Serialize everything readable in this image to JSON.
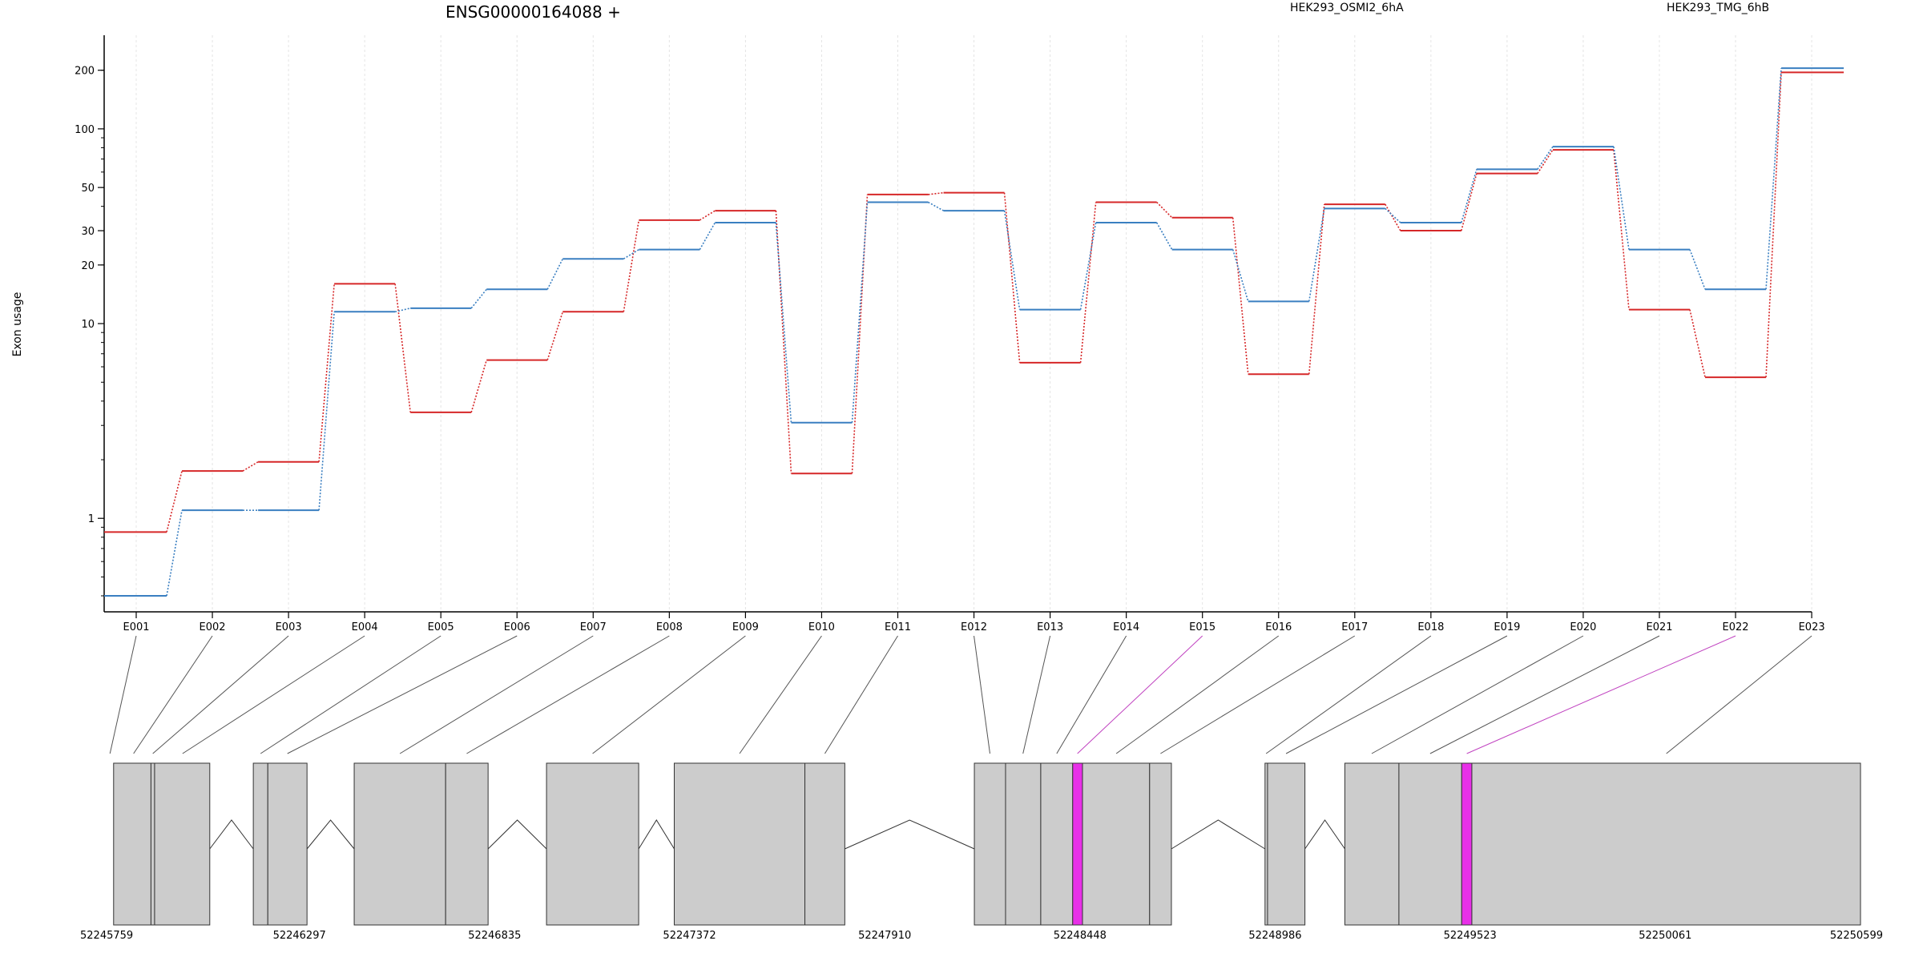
{
  "chart_data": {
    "type": "line",
    "title": "ENSG00000164088 +",
    "ylabel": "Exon usage",
    "y_scale": "log",
    "ylim": [
      0.4,
      260
    ],
    "y_ticks": [
      1,
      10,
      20,
      30,
      50,
      100,
      200
    ],
    "grid": "vertical dotted lines at each exon",
    "legend_placement": "top-right",
    "categories": [
      "E001",
      "E002",
      "E003",
      "E004",
      "E005",
      "E006",
      "E007",
      "E008",
      "E009",
      "E010",
      "E011",
      "E012",
      "E013",
      "E014",
      "E015",
      "E016",
      "E017",
      "E018",
      "E019",
      "E020",
      "E021",
      "E022",
      "E023"
    ],
    "series": [
      {
        "name": "HEK293_OSMI2_6hA",
        "color": "#d62728",
        "values": [
          0.85,
          1.75,
          1.95,
          16,
          3.5,
          6.5,
          11.5,
          34,
          38,
          1.7,
          46,
          47,
          6.3,
          42,
          35,
          5.5,
          41,
          30,
          59,
          78,
          11.8,
          5.3,
          195
        ]
      },
      {
        "name": "HEK293_TMG_6hB",
        "color": "#3a7fc1",
        "values": [
          0.4,
          1.1,
          1.1,
          11.5,
          12,
          15,
          21.5,
          24,
          33,
          3.1,
          42,
          38,
          11.8,
          33,
          24,
          13,
          39,
          33,
          62,
          81,
          24,
          15,
          205
        ]
      }
    ],
    "gene_model": {
      "coordinates_axis": {
        "ticks": [
          52245759,
          52246297,
          52246835,
          52247372,
          52247910,
          52248448,
          52248986,
          52249523,
          52250061,
          52250599
        ],
        "range": [
          52245759,
          52250599
        ]
      },
      "exon_blocks": [
        {
          "start": 52245785,
          "end": 52245888,
          "color": "#cccccc"
        },
        {
          "start": 52245888,
          "end": 52245898,
          "color": "#cccccc"
        },
        {
          "start": 52245898,
          "end": 52246050,
          "color": "#cccccc"
        },
        {
          "start": 52246170,
          "end": 52246210,
          "color": "#cccccc"
        },
        {
          "start": 52246210,
          "end": 52246318,
          "color": "#cccccc"
        },
        {
          "start": 52246448,
          "end": 52246700,
          "color": "#cccccc"
        },
        {
          "start": 52246700,
          "end": 52246817,
          "color": "#cccccc"
        },
        {
          "start": 52246978,
          "end": 52247232,
          "color": "#cccccc"
        },
        {
          "start": 52247330,
          "end": 52247690,
          "color": "#cccccc"
        },
        {
          "start": 52247690,
          "end": 52247800,
          "color": "#cccccc"
        },
        {
          "start": 52248157,
          "end": 52248243,
          "color": "#cccccc"
        },
        {
          "start": 52248243,
          "end": 52248340,
          "color": "#cccccc"
        },
        {
          "start": 52248340,
          "end": 52248428,
          "color": "#cccccc"
        },
        {
          "start": 52248428,
          "end": 52248455,
          "color": "#e830e8"
        },
        {
          "start": 52248455,
          "end": 52248640,
          "color": "#cccccc"
        },
        {
          "start": 52248640,
          "end": 52248700,
          "color": "#cccccc"
        },
        {
          "start": 52248958,
          "end": 52248965,
          "color": "#cccccc"
        },
        {
          "start": 52248965,
          "end": 52249068,
          "color": "#cccccc"
        },
        {
          "start": 52249178,
          "end": 52249327,
          "color": "#cccccc"
        },
        {
          "start": 52249327,
          "end": 52249500,
          "color": "#cccccc"
        },
        {
          "start": 52249500,
          "end": 52249528,
          "color": "#e830e8"
        },
        {
          "start": 52249528,
          "end": 52250599,
          "color": "#cccccc"
        }
      ],
      "introns": [
        {
          "start": 52246050,
          "end": 52246170
        },
        {
          "start": 52246318,
          "end": 52246448
        },
        {
          "start": 52246817,
          "end": 52246978
        },
        {
          "start": 52247232,
          "end": 52247330
        },
        {
          "start": 52247800,
          "end": 52248157
        },
        {
          "start": 52248700,
          "end": 52248958
        },
        {
          "start": 52249068,
          "end": 52249178
        }
      ],
      "connectors": [
        {
          "exon": "E001",
          "pos": 52245775,
          "color": "#555555"
        },
        {
          "exon": "E002",
          "pos": 52245840,
          "color": "#555555"
        },
        {
          "exon": "E003",
          "pos": 52245893,
          "color": "#555555"
        },
        {
          "exon": "E004",
          "pos": 52245975,
          "color": "#555555"
        },
        {
          "exon": "E005",
          "pos": 52246190,
          "color": "#555555"
        },
        {
          "exon": "E006",
          "pos": 52246264,
          "color": "#555555"
        },
        {
          "exon": "E007",
          "pos": 52246574,
          "color": "#555555"
        },
        {
          "exon": "E008",
          "pos": 52246758,
          "color": "#555555"
        },
        {
          "exon": "E009",
          "pos": 52247105,
          "color": "#555555"
        },
        {
          "exon": "E010",
          "pos": 52247510,
          "color": "#555555"
        },
        {
          "exon": "E011",
          "pos": 52247745,
          "color": "#555555"
        },
        {
          "exon": "E012",
          "pos": 52248200,
          "color": "#555555"
        },
        {
          "exon": "E013",
          "pos": 52248291,
          "color": "#555555"
        },
        {
          "exon": "E014",
          "pos": 52248384,
          "color": "#555555"
        },
        {
          "exon": "E015",
          "pos": 52248441,
          "color": "#c042c0"
        },
        {
          "exon": "E016",
          "pos": 52248548,
          "color": "#555555"
        },
        {
          "exon": "E017",
          "pos": 52248670,
          "color": "#555555"
        },
        {
          "exon": "E018",
          "pos": 52248961,
          "color": "#555555"
        },
        {
          "exon": "E019",
          "pos": 52249016,
          "color": "#555555"
        },
        {
          "exon": "E020",
          "pos": 52249252,
          "color": "#555555"
        },
        {
          "exon": "E021",
          "pos": 52249413,
          "color": "#555555"
        },
        {
          "exon": "E022",
          "pos": 52249514,
          "color": "#c042c0"
        },
        {
          "exon": "E023",
          "pos": 52250064,
          "color": "#555555"
        }
      ]
    }
  }
}
